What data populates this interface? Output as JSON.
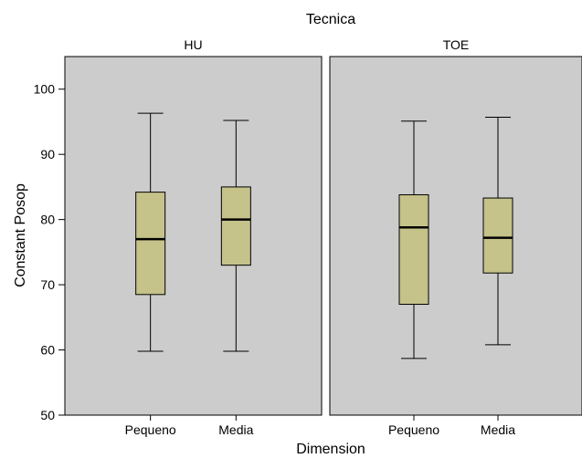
{
  "chart_data": {
    "type": "boxplot",
    "title": "Tecnica",
    "xlabel": "Dimension",
    "ylabel": "Constant Posop",
    "ylim": [
      50,
      105
    ],
    "yticks": [
      50,
      60,
      70,
      80,
      90,
      100
    ],
    "categories": [
      "Pequeno",
      "Media"
    ],
    "box_color": "#c5c28a",
    "panel_background": "#cccccc",
    "panels": [
      {
        "name": "HU",
        "boxes": [
          {
            "category": "Pequeno",
            "min": 59.8,
            "q1": 68.5,
            "median": 77.0,
            "q3": 84.2,
            "max": 96.3
          },
          {
            "category": "Media",
            "min": 59.8,
            "q1": 73.0,
            "median": 80.0,
            "q3": 85.0,
            "max": 95.2
          }
        ]
      },
      {
        "name": "TOE",
        "boxes": [
          {
            "category": "Pequeno",
            "min": 58.7,
            "q1": 67.0,
            "median": 78.8,
            "q3": 83.8,
            "max": 95.1
          },
          {
            "category": "Media",
            "min": 60.8,
            "q1": 71.8,
            "median": 77.2,
            "q3": 83.3,
            "max": 95.7
          }
        ]
      }
    ]
  }
}
